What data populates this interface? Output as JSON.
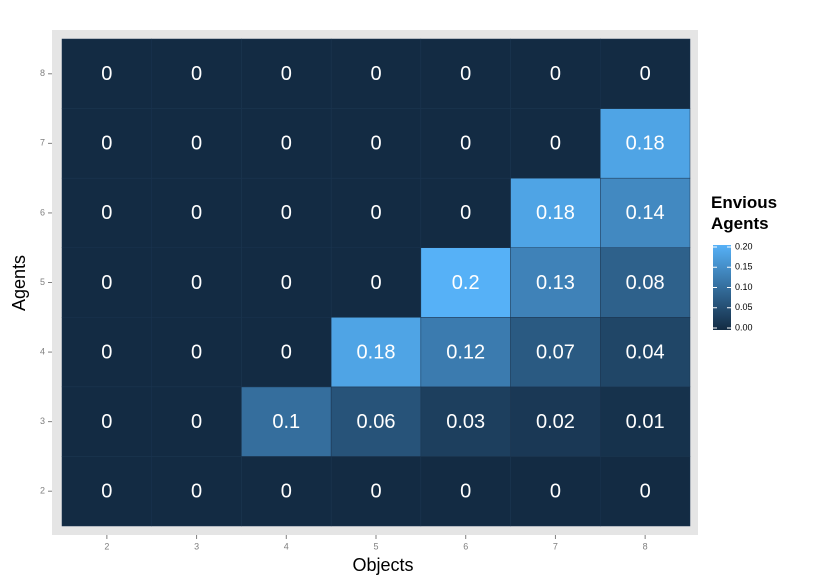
{
  "chart_data": {
    "type": "heatmap",
    "x_label": "Objects",
    "y_label": "Agents",
    "x_categories": [
      "2",
      "3",
      "4",
      "5",
      "6",
      "7",
      "8"
    ],
    "y_categories": [
      "2",
      "3",
      "4",
      "5",
      "6",
      "7",
      "8"
    ],
    "values": [
      [
        0,
        0,
        0,
        0,
        0,
        0,
        0
      ],
      [
        0,
        0,
        0.1,
        0.06,
        0.03,
        0.02,
        0.01
      ],
      [
        0,
        0,
        0,
        0.18,
        0.12,
        0.07,
        0.04
      ],
      [
        0,
        0,
        0,
        0,
        0.2,
        0.13,
        0.08
      ],
      [
        0,
        0,
        0,
        0,
        0,
        0.18,
        0.14
      ],
      [
        0,
        0,
        0,
        0,
        0,
        0,
        0.18
      ],
      [
        0,
        0,
        0,
        0,
        0,
        0,
        0
      ]
    ],
    "legend_title": "Envious Agents",
    "colorlim": [
      0,
      0.2
    ],
    "colorticks": [
      {
        "value": 0,
        "label": "0.00"
      },
      {
        "value": 0.05,
        "label": "0.05"
      },
      {
        "value": 0.1,
        "label": "0.10"
      },
      {
        "value": 0.15,
        "label": "0.15"
      },
      {
        "value": 0.2,
        "label": "0.20"
      }
    ],
    "low_color": "#132b43",
    "high_color": "#56b1f7"
  }
}
